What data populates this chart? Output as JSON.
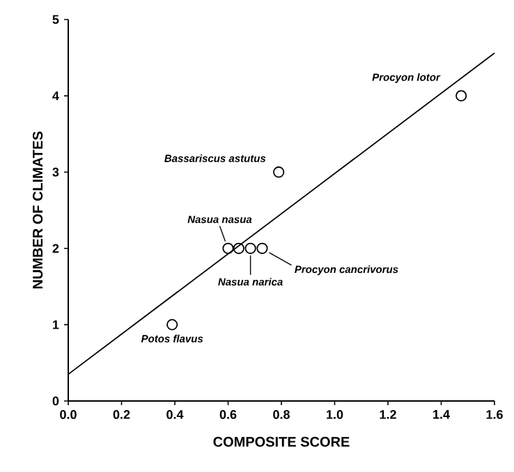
{
  "chart_data": {
    "type": "scatter",
    "xlabel": "COMPOSITE SCORE",
    "ylabel": "NUMBER OF CLIMATES",
    "series": [
      {
        "color": "#000000",
        "marker": "circle",
        "x": [
          0.39,
          0.6,
          0.64,
          0.684,
          0.728,
          0.79,
          1.475
        ],
        "values": [
          1,
          2,
          2,
          2,
          2,
          3,
          4
        ]
      },
      {
        "type": "line",
        "color": "#000000",
        "marker": "none",
        "line_style": "solid",
        "x": [
          0,
          1.6
        ],
        "values": [
          0.35,
          4.56
        ]
      }
    ],
    "annotations": [
      {
        "text": "Procyon lotor",
        "x": 1.475,
        "y": 4
      },
      {
        "text": "Bassariscus astutus",
        "x": 0.79,
        "y": 3
      },
      {
        "text": "Nasua nasua",
        "x": 0.6,
        "y": 2
      },
      {
        "text": "Nasua narica",
        "x": 0.684,
        "y": 2
      },
      {
        "text": "Procyon cancrivorus",
        "x": 0.728,
        "y": 2
      },
      {
        "text": "Potos flavus",
        "x": 0.39,
        "y": 1
      }
    ],
    "xlim": [
      0,
      1.6
    ],
    "ylim": [
      0,
      5
    ],
    "xticks": [
      {
        "value": 0,
        "label": "0.0"
      },
      0.2,
      0.4,
      0.6,
      0.8,
      {
        "value": 1,
        "label": "1.0"
      },
      1.2,
      1.4,
      1.6
    ],
    "yticks": [
      0,
      1,
      2,
      3,
      4,
      5
    ]
  }
}
